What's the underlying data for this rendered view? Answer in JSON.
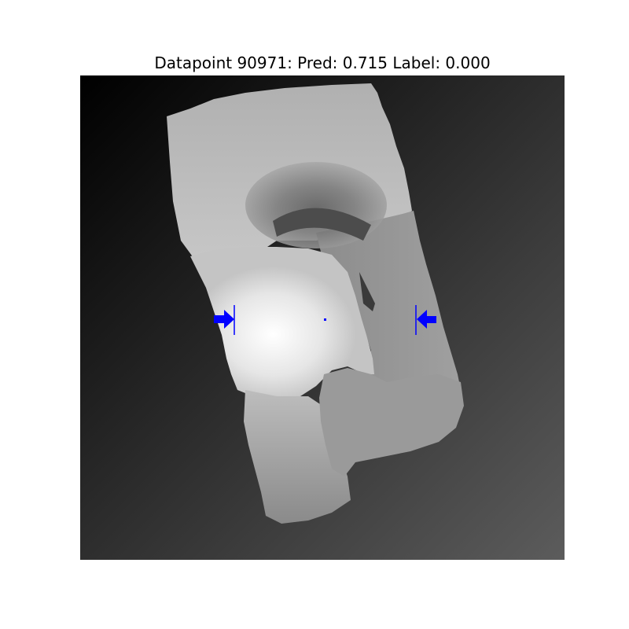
{
  "figure": {
    "title": "Datapoint 90971: Pred: 0.715 Label: 0.000"
  },
  "image": {
    "description_free": true,
    "colormap": "gray",
    "marker_color": "#0000ff",
    "background_gradient": [
      "#000000",
      "#5a5a5a"
    ]
  },
  "icons": [
    "grasp-arrow-left-icon",
    "grasp-arrow-right-icon",
    "grasp-center-point"
  ]
}
